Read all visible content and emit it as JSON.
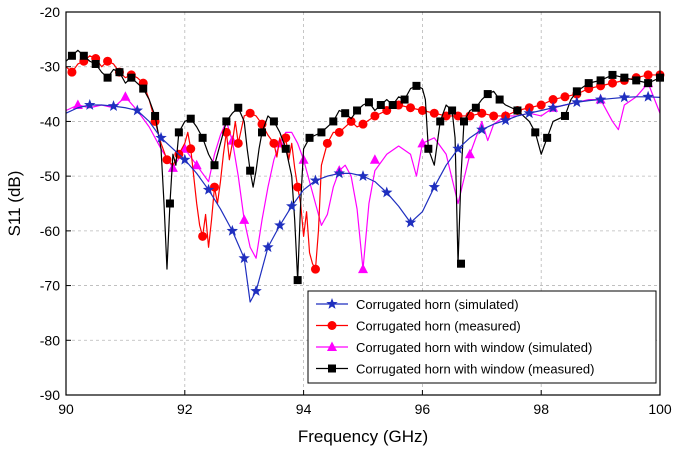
{
  "chart_data": {
    "type": "line",
    "xlabel": "Frequency (GHz)",
    "ylabel": "S11 (dB)",
    "xlim": [
      90,
      100
    ],
    "ylim": [
      -90,
      -20
    ],
    "xticks": [
      90,
      92,
      94,
      96,
      98,
      100
    ],
    "yticks": [
      -20,
      -30,
      -40,
      -50,
      -60,
      -70,
      -80,
      -90
    ],
    "grid": true,
    "legend_position": "bottom-right",
    "series": [
      {
        "name": "Corrugated horn (simulated)",
        "color": "#1f2fbf",
        "marker": "star",
        "x": [
          90.0,
          90.2,
          90.4,
          90.6,
          90.8,
          91.0,
          91.2,
          91.4,
          91.6,
          91.8,
          92.0,
          92.2,
          92.4,
          92.6,
          92.8,
          93.0,
          93.1,
          93.2,
          93.4,
          93.6,
          93.8,
          94.0,
          94.2,
          94.4,
          94.6,
          94.8,
          95.0,
          95.2,
          95.4,
          95.6,
          95.8,
          96.0,
          96.2,
          96.4,
          96.6,
          96.8,
          97.0,
          97.2,
          97.4,
          97.6,
          97.8,
          98.0,
          98.2,
          98.4,
          98.6,
          98.8,
          99.0,
          99.2,
          99.4,
          99.6,
          99.8,
          100.0
        ],
        "y": [
          -38.5,
          -37.5,
          -37.0,
          -37.0,
          -37.2,
          -37.5,
          -38.0,
          -40.0,
          -43.0,
          -45.0,
          -47.0,
          -49.5,
          -52.5,
          -56.0,
          -60.0,
          -65.0,
          -73.0,
          -71.0,
          -63.0,
          -59.0,
          -55.5,
          -52.5,
          -50.8,
          -50.0,
          -49.5,
          -49.5,
          -50.0,
          -51.0,
          -53.0,
          -55.5,
          -58.5,
          -56.5,
          -52.0,
          -48.0,
          -45.0,
          -43.0,
          -41.5,
          -40.5,
          -39.8,
          -39.0,
          -38.5,
          -38.0,
          -37.5,
          -37.0,
          -36.5,
          -36.2,
          -36.0,
          -35.8,
          -35.6,
          -35.5,
          -35.5,
          -35.6
        ],
        "marker_x": [
          90.4,
          90.8,
          91.2,
          91.6,
          92.0,
          92.4,
          92.8,
          93.0,
          93.2,
          93.4,
          93.6,
          93.8,
          94.2,
          94.6,
          95.0,
          95.4,
          95.8,
          96.2,
          96.6,
          97.0,
          97.4,
          97.8,
          98.2,
          98.6,
          99.0,
          99.4,
          99.8
        ],
        "marker_y": [
          -37.0,
          -37.2,
          -38.0,
          -43.0,
          -47.0,
          -52.5,
          -60.0,
          -65.0,
          -71.0,
          -63.0,
          -59.0,
          -55.5,
          -50.8,
          -49.5,
          -50.0,
          -53.0,
          -58.5,
          -52.0,
          -45.0,
          -41.5,
          -39.8,
          -38.5,
          -37.5,
          -36.5,
          -36.0,
          -35.6,
          -35.5
        ]
      },
      {
        "name": "Corrugated horn (measured)",
        "color": "#ff0000",
        "marker": "circle",
        "x": [
          90.0,
          90.1,
          90.2,
          90.3,
          90.4,
          90.5,
          90.6,
          90.7,
          90.8,
          90.9,
          91.0,
          91.1,
          91.2,
          91.3,
          91.4,
          91.5,
          91.6,
          91.7,
          91.8,
          91.9,
          92.0,
          92.05,
          92.1,
          92.15,
          92.2,
          92.25,
          92.3,
          92.35,
          92.4,
          92.45,
          92.5,
          92.55,
          92.6,
          92.65,
          92.7,
          92.75,
          92.8,
          92.85,
          92.9,
          93.0,
          93.1,
          93.2,
          93.3,
          93.4,
          93.5,
          93.55,
          93.6,
          93.65,
          93.7,
          93.75,
          93.8,
          93.85,
          93.9,
          93.95,
          94.0,
          94.05,
          94.1,
          94.15,
          94.2,
          94.25,
          94.3,
          94.4,
          94.5,
          94.6,
          94.7,
          94.8,
          94.9,
          95.0,
          95.2,
          95.4,
          95.6,
          95.8,
          96.0,
          96.2,
          96.4,
          96.6,
          96.8,
          97.0,
          97.2,
          97.4,
          97.6,
          97.8,
          98.0,
          98.2,
          98.4,
          98.6,
          98.8,
          99.0,
          99.2,
          99.4,
          99.6,
          99.8,
          100.0
        ],
        "y": [
          -30.0,
          -31.0,
          -29.5,
          -29.0,
          -28.0,
          -28.5,
          -30.0,
          -29.0,
          -29.5,
          -31.0,
          -32.0,
          -31.5,
          -32.0,
          -33.0,
          -36.0,
          -40.0,
          -44.0,
          -47.0,
          -48.0,
          -46.0,
          -44.0,
          -42.0,
          -45.0,
          -50.0,
          -55.0,
          -59.0,
          -61.0,
          -57.0,
          -63.0,
          -58.0,
          -52.0,
          -55.0,
          -51.0,
          -46.0,
          -42.0,
          -47.0,
          -44.0,
          -40.0,
          -44.0,
          -39.0,
          -38.5,
          -39.0,
          -40.5,
          -42.5,
          -44.0,
          -46.5,
          -43.0,
          -45.5,
          -43.0,
          -47.0,
          -44.0,
          -48.5,
          -52.0,
          -55.0,
          -61.0,
          -56.5,
          -64.0,
          -66.0,
          -67.0,
          -60.0,
          -48.0,
          -44.0,
          -42.0,
          -42.0,
          -41.0,
          -40.0,
          -41.0,
          -40.5,
          -39.0,
          -38.0,
          -37.0,
          -37.5,
          -38.0,
          -38.5,
          -39.0,
          -39.0,
          -39.0,
          -38.5,
          -39.0,
          -39.0,
          -38.0,
          -37.5,
          -37.0,
          -36.0,
          -35.5,
          -35.0,
          -34.0,
          -33.5,
          -33.0,
          -32.5,
          -32.0,
          -31.5,
          -31.5
        ],
        "marker_x": [
          90.1,
          90.3,
          90.5,
          90.7,
          90.9,
          91.1,
          91.3,
          91.5,
          91.7,
          91.9,
          92.1,
          92.3,
          92.5,
          92.7,
          92.9,
          93.1,
          93.3,
          93.5,
          93.7,
          93.9,
          94.2,
          94.4,
          94.6,
          94.8,
          95.0,
          95.2,
          95.4,
          95.6,
          95.8,
          96.0,
          96.2,
          96.4,
          96.6,
          96.8,
          97.0,
          97.2,
          97.4,
          97.6,
          97.8,
          98.0,
          98.2,
          98.4,
          98.6,
          98.8,
          99.0,
          99.2,
          99.4,
          99.6,
          99.8,
          100.0
        ],
        "marker_y": [
          -31.0,
          -29.0,
          -28.5,
          -29.0,
          -31.0,
          -31.5,
          -33.0,
          -40.0,
          -47.0,
          -46.0,
          -45.0,
          -61.0,
          -52.0,
          -42.0,
          -44.0,
          -38.5,
          -40.5,
          -44.0,
          -43.0,
          -52.0,
          -67.0,
          -44.0,
          -42.0,
          -40.0,
          -40.5,
          -39.0,
          -38.0,
          -37.0,
          -37.5,
          -38.0,
          -38.5,
          -39.0,
          -39.0,
          -39.0,
          -38.5,
          -39.0,
          -39.0,
          -38.0,
          -37.5,
          -37.0,
          -36.0,
          -35.5,
          -35.0,
          -34.0,
          -33.5,
          -33.0,
          -32.5,
          -32.0,
          -31.5,
          -31.5
        ]
      },
      {
        "name": "Corrugated horn with window (simulated)",
        "color": "#ff00ff",
        "marker": "triangle",
        "x": [
          90.0,
          90.2,
          90.4,
          90.6,
          90.8,
          91.0,
          91.2,
          91.4,
          91.6,
          91.8,
          92.0,
          92.2,
          92.4,
          92.5,
          92.6,
          92.7,
          92.8,
          92.9,
          93.0,
          93.1,
          93.2,
          93.3,
          93.4,
          93.5,
          93.6,
          93.7,
          93.8,
          93.9,
          94.0,
          94.1,
          94.2,
          94.3,
          94.4,
          94.5,
          94.6,
          94.7,
          94.8,
          94.9,
          95.0,
          95.1,
          95.2,
          95.4,
          95.6,
          95.8,
          95.9,
          96.0,
          96.2,
          96.4,
          96.6,
          96.8,
          97.0,
          97.1,
          97.2,
          97.4,
          97.6,
          97.8,
          98.0,
          98.2,
          98.4,
          98.6,
          98.8,
          99.0,
          99.2,
          99.3,
          99.4,
          99.6,
          99.8,
          100.0
        ],
        "y": [
          -38.0,
          -37.0,
          -37.5,
          -37.0,
          -37.5,
          -35.5,
          -38.0,
          -41.0,
          -45.0,
          -48.5,
          -45.0,
          -48.0,
          -51.0,
          -46.0,
          -42.5,
          -40.0,
          -43.5,
          -50.0,
          -58.0,
          -63.0,
          -65.0,
          -58.0,
          -52.0,
          -47.0,
          -44.0,
          -42.0,
          -42.0,
          -44.0,
          -47.0,
          -51.0,
          -55.0,
          -59.0,
          -57.0,
          -52.0,
          -49.0,
          -48.0,
          -50.0,
          -56.0,
          -67.0,
          -55.0,
          -49.0,
          -46.0,
          -44.5,
          -46.0,
          -50.0,
          -44.0,
          -43.0,
          -46.0,
          -55.0,
          -46.0,
          -40.0,
          -43.5,
          -40.5,
          -39.0,
          -39.0,
          -38.5,
          -39.0,
          -37.5,
          -37.0,
          -36.5,
          -36.0,
          -36.0,
          -40.0,
          -41.5,
          -37.0,
          -35.5,
          -33.0,
          -38.5
        ],
        "marker_x": [
          90.2,
          91.0,
          91.8,
          92.0,
          92.2,
          92.8,
          93.0,
          93.6,
          94.0,
          94.6,
          95.0,
          95.2,
          96.0,
          96.8,
          97.4,
          98.2,
          99.0,
          99.8
        ],
        "marker_y": [
          -37.0,
          -35.5,
          -48.5,
          -45.0,
          -48.0,
          -43.5,
          -58.0,
          -44.0,
          -47.0,
          -49.0,
          -67.0,
          -47.0,
          -44.0,
          -46.0,
          -39.0,
          -37.5,
          -36.0,
          -33.0
        ]
      },
      {
        "name": "Corrugated horn with window (measured)",
        "color": "#000000",
        "marker": "square",
        "x": [
          90.0,
          90.1,
          90.2,
          90.3,
          90.4,
          90.5,
          90.6,
          90.7,
          90.8,
          90.9,
          91.0,
          91.1,
          91.2,
          91.3,
          91.4,
          91.5,
          91.6,
          91.65,
          91.7,
          91.75,
          91.8,
          91.85,
          91.9,
          92.0,
          92.1,
          92.2,
          92.3,
          92.4,
          92.5,
          92.6,
          92.7,
          92.8,
          92.9,
          93.0,
          93.05,
          93.1,
          93.15,
          93.2,
          93.25,
          93.3,
          93.4,
          93.5,
          93.6,
          93.7,
          93.8,
          93.85,
          93.9,
          93.95,
          94.0,
          94.1,
          94.2,
          94.3,
          94.4,
          94.5,
          94.6,
          94.7,
          94.8,
          94.9,
          95.0,
          95.1,
          95.2,
          95.3,
          95.4,
          95.5,
          95.6,
          95.7,
          95.8,
          95.9,
          96.0,
          96.05,
          96.1,
          96.2,
          96.3,
          96.4,
          96.5,
          96.55,
          96.6,
          96.65,
          96.7,
          96.8,
          96.9,
          97.0,
          97.1,
          97.2,
          97.3,
          97.4,
          97.6,
          97.8,
          97.9,
          98.0,
          98.1,
          98.2,
          98.4,
          98.5,
          98.6,
          98.8,
          99.0,
          99.2,
          99.4,
          99.6,
          99.8,
          100.0
        ],
        "y": [
          -29.0,
          -28.0,
          -27.0,
          -28.0,
          -29.0,
          -29.5,
          -31.0,
          -32.0,
          -30.5,
          -31.0,
          -33.0,
          -32.0,
          -33.0,
          -34.0,
          -36.0,
          -39.0,
          -45.0,
          -55.0,
          -67.0,
          -55.0,
          -46.0,
          -48.0,
          -42.0,
          -40.0,
          -39.5,
          -41.0,
          -43.0,
          -46.0,
          -48.0,
          -44.0,
          -40.0,
          -38.5,
          -37.5,
          -40.0,
          -45.0,
          -49.0,
          -52.0,
          -49.0,
          -45.0,
          -42.0,
          -39.0,
          -40.0,
          -42.0,
          -45.0,
          -50.0,
          -58.0,
          -69.0,
          -55.0,
          -45.0,
          -43.0,
          -42.5,
          -42.0,
          -41.0,
          -40.0,
          -38.0,
          -38.5,
          -39.5,
          -38.0,
          -37.0,
          -36.5,
          -38.0,
          -37.0,
          -36.0,
          -37.0,
          -35.5,
          -36.0,
          -34.0,
          -33.5,
          -34.0,
          -36.0,
          -45.0,
          -48.0,
          -40.0,
          -37.0,
          -38.0,
          -43.0,
          -66.0,
          -50.0,
          -40.0,
          -38.0,
          -37.5,
          -36.0,
          -35.0,
          -34.5,
          -36.0,
          -37.0,
          -38.0,
          -40.0,
          -42.0,
          -46.0,
          -43.0,
          -40.0,
          -39.0,
          -36.0,
          -34.5,
          -33.0,
          -32.5,
          -31.5,
          -32.0,
          -32.5,
          -33.0,
          -32.0
        ],
        "marker_x": [
          90.1,
          90.3,
          90.5,
          90.7,
          90.9,
          91.1,
          91.3,
          91.5,
          91.75,
          91.9,
          92.1,
          92.3,
          92.5,
          92.7,
          92.9,
          93.1,
          93.3,
          93.5,
          93.7,
          93.9,
          94.1,
          94.3,
          94.5,
          94.7,
          94.9,
          95.1,
          95.3,
          95.5,
          95.7,
          95.9,
          96.1,
          96.3,
          96.5,
          96.65,
          96.7,
          96.9,
          97.1,
          97.3,
          97.6,
          97.9,
          98.1,
          98.4,
          98.6,
          98.8,
          99.0,
          99.2,
          99.4,
          99.6,
          99.8,
          100.0
        ],
        "marker_y": [
          -28.0,
          -28.0,
          -29.5,
          -32.0,
          -31.0,
          -32.0,
          -34.0,
          -39.0,
          -55.0,
          -42.0,
          -39.5,
          -43.0,
          -48.0,
          -40.0,
          -37.5,
          -49.0,
          -42.0,
          -40.0,
          -45.0,
          -69.0,
          -43.0,
          -42.0,
          -40.0,
          -38.5,
          -38.0,
          -36.5,
          -37.0,
          -37.0,
          -36.0,
          -33.5,
          -45.0,
          -40.0,
          -38.0,
          -66.0,
          -40.0,
          -37.5,
          -35.0,
          -36.0,
          -38.0,
          -42.0,
          -43.0,
          -39.0,
          -34.5,
          -33.0,
          -32.5,
          -31.5,
          -32.0,
          -32.5,
          -33.0,
          -32.0
        ]
      }
    ]
  }
}
